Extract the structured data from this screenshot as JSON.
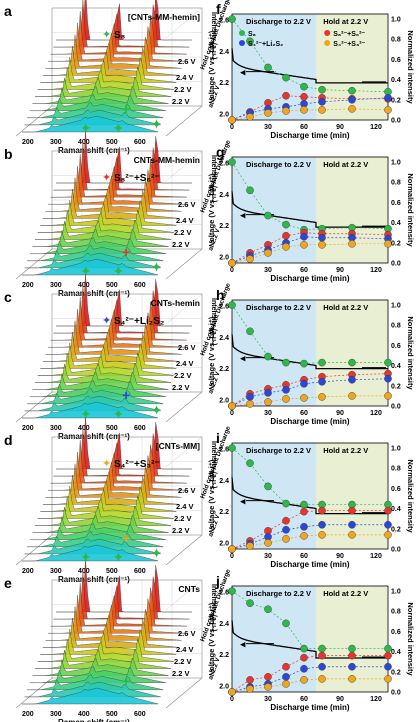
{
  "axes_text": {
    "raman_x": "Raman shift (cm⁻¹)",
    "raman_x_ticks": [
      "200",
      "300",
      "400",
      "500",
      "600"
    ],
    "raman_z": "Intensity (a.u.)",
    "raman_side": "Hold constant Discharge",
    "raman_side2": "at 2.2 V",
    "voltage_y": "Voltage (V vs. Li/Li⁺)",
    "norm_y": "Normalized intensity",
    "time_x": "Discharge time (min)",
    "time_ticks": [
      "0",
      "30",
      "60",
      "90",
      "120"
    ],
    "v_ticks": [
      "2.0",
      "2.2",
      "2.4",
      "2.6"
    ],
    "n_ticks": [
      "0.0",
      "0.2",
      "0.4",
      "0.6",
      "0.8",
      "1.0"
    ]
  },
  "raman_panels": [
    {
      "letter": "a",
      "sample": "[CNTs-MM-hemin]",
      "species": "S₈",
      "marker": "#2db84a",
      "voltages": [
        "2.6 V",
        "2.4 V",
        "2.2 V",
        "2.2 V"
      ]
    },
    {
      "letter": "b",
      "sample": "CNTs-MM-hemin",
      "species": "S₈²⁻+S₆²⁻",
      "marker": "#e8352b",
      "voltages": [
        "2.6 V",
        "2.4 V",
        "2.2 V",
        "2.2 V"
      ]
    },
    {
      "letter": "c",
      "sample": "CNTs-hemin",
      "species": "S₄²⁻+Li₂S₂",
      "marker": "#2a47d8",
      "voltages": [
        "2.6 V",
        "2.4 V",
        "2.2 V",
        "2.2 V"
      ]
    },
    {
      "letter": "d",
      "sample": "[CNTs-MM]",
      "species": "S₄²⁻+S₃²⁻",
      "marker": "#f1a51c",
      "voltages": [
        "2.6 V",
        "2.4 V",
        "2.2 V",
        "2.2 V"
      ]
    },
    {
      "letter": "e",
      "sample": "CNTs",
      "species": "",
      "marker": "#2db84a",
      "voltages": [
        "2.6 V",
        "2.4 V",
        "2.2 V",
        "2.2 V"
      ]
    }
  ],
  "kinetic_panels": [
    {
      "letter": "f",
      "region_left": "Discharge to 2.2 V",
      "region_right": "Hold at 2.2 V",
      "legend": [
        "S₈",
        "S₄²⁻+Li₂S₂",
        "S₈²⁻+S₆²⁻",
        "S₄²⁻+S₃²⁻"
      ],
      "plateau": 2.198,
      "green": [
        1.0,
        0.78,
        0.52,
        0.42,
        0.33,
        0.3,
        0.29,
        0.28
      ],
      "red": [
        0.0,
        0.08,
        0.17,
        0.24,
        0.23,
        0.22,
        0.21,
        0.21
      ],
      "blue": [
        0.0,
        0.07,
        0.11,
        0.13,
        0.16,
        0.18,
        0.2,
        0.22
      ],
      "orange": [
        0.0,
        0.03,
        0.07,
        0.09,
        0.1,
        0.1,
        0.11,
        0.1
      ]
    },
    {
      "letter": "g",
      "region_left": "Discharge to 2.2 V",
      "region_right": "Hold at 2.2 V",
      "legend": [],
      "plateau": 2.19,
      "green": [
        1.0,
        0.72,
        0.47,
        0.38,
        0.33,
        0.34,
        0.35,
        0.34
      ],
      "red": [
        0.0,
        0.1,
        0.18,
        0.27,
        0.3,
        0.29,
        0.29,
        0.28
      ],
      "blue": [
        0.0,
        0.07,
        0.13,
        0.2,
        0.26,
        0.25,
        0.25,
        0.24
      ],
      "orange": [
        0.0,
        0.04,
        0.1,
        0.16,
        0.18,
        0.18,
        0.19,
        0.19
      ]
    },
    {
      "letter": "h",
      "region_left": "Discharge to 2.2 V",
      "region_right": "Hold at 2.2 V",
      "legend": [],
      "plateau": 2.2,
      "green": [
        1.0,
        0.74,
        0.49,
        0.43,
        0.42,
        0.43,
        0.43,
        0.43
      ],
      "red": [
        0.0,
        0.12,
        0.17,
        0.21,
        0.26,
        0.29,
        0.31,
        0.32
      ],
      "blue": [
        0.0,
        0.09,
        0.13,
        0.16,
        0.22,
        0.24,
        0.26,
        0.27
      ],
      "orange": [
        0.0,
        0.02,
        0.04,
        0.07,
        0.08,
        0.09,
        0.1,
        0.1
      ]
    },
    {
      "letter": "i",
      "region_left": "Discharge to 2.2 V",
      "region_right": "Hold at 2.2 V",
      "legend": [],
      "plateau": 2.187,
      "green": [
        1.0,
        0.85,
        0.62,
        0.45,
        0.44,
        0.44,
        0.44,
        0.44
      ],
      "red": [
        0.0,
        0.08,
        0.18,
        0.28,
        0.37,
        0.38,
        0.38,
        0.38
      ],
      "blue": [
        0.0,
        0.05,
        0.12,
        0.19,
        0.22,
        0.24,
        0.24,
        0.24
      ],
      "orange": [
        0.0,
        0.03,
        0.06,
        0.1,
        0.13,
        0.14,
        0.14,
        0.14
      ]
    },
    {
      "letter": "j",
      "region_left": "Discharge to 2.2 V",
      "region_right": "Hold at 2.2 V",
      "legend": [],
      "plateau": 2.178,
      "green": [
        1.0,
        0.88,
        0.82,
        0.68,
        0.43,
        0.43,
        0.43,
        0.43
      ],
      "red": [
        0.0,
        0.12,
        0.15,
        0.25,
        0.34,
        0.36,
        0.36,
        0.36
      ],
      "blue": [
        0.0,
        0.05,
        0.08,
        0.15,
        0.23,
        0.25,
        0.25,
        0.25
      ],
      "orange": [
        0.0,
        0.03,
        0.05,
        0.08,
        0.12,
        0.13,
        0.13,
        0.13
      ]
    }
  ],
  "colors": {
    "green": "#2db84a",
    "red": "#e8352b",
    "blue": "#2a47d8",
    "orange": "#f1a51c",
    "discharge_bg": "#cfe6f4",
    "hold_bg": "#e9efd2",
    "line": "#000000",
    "trace_top": "#e01818",
    "trace_bottom": "#19c6d8"
  },
  "chart_data": [
    {
      "type": "line",
      "title": "",
      "panel": "f",
      "xlabel": "Discharge time (min)",
      "ylabel": "Voltage (V vs. Li/Li⁺)",
      "y2label": "Normalized intensity",
      "xlim": [
        0,
        130
      ],
      "ylim": [
        1.96,
        2.64
      ],
      "y2lim": [
        0,
        1.05
      ],
      "x": [
        0,
        15,
        30,
        45,
        60,
        75,
        100,
        130
      ],
      "series": [
        {
          "name": "S₈",
          "values": [
            1.0,
            0.78,
            0.52,
            0.42,
            0.33,
            0.3,
            0.29,
            0.28
          ]
        },
        {
          "name": "S₈²⁻+S₆²⁻",
          "values": [
            0.0,
            0.08,
            0.17,
            0.24,
            0.23,
            0.22,
            0.21,
            0.21
          ]
        },
        {
          "name": "S₄²⁻+Li₂S₂",
          "values": [
            0.0,
            0.07,
            0.11,
            0.13,
            0.16,
            0.18,
            0.2,
            0.22
          ]
        },
        {
          "name": "S₄²⁻+S₃²⁻",
          "values": [
            0.0,
            0.03,
            0.07,
            0.09,
            0.1,
            0.1,
            0.11,
            0.1
          ]
        }
      ]
    }
  ]
}
